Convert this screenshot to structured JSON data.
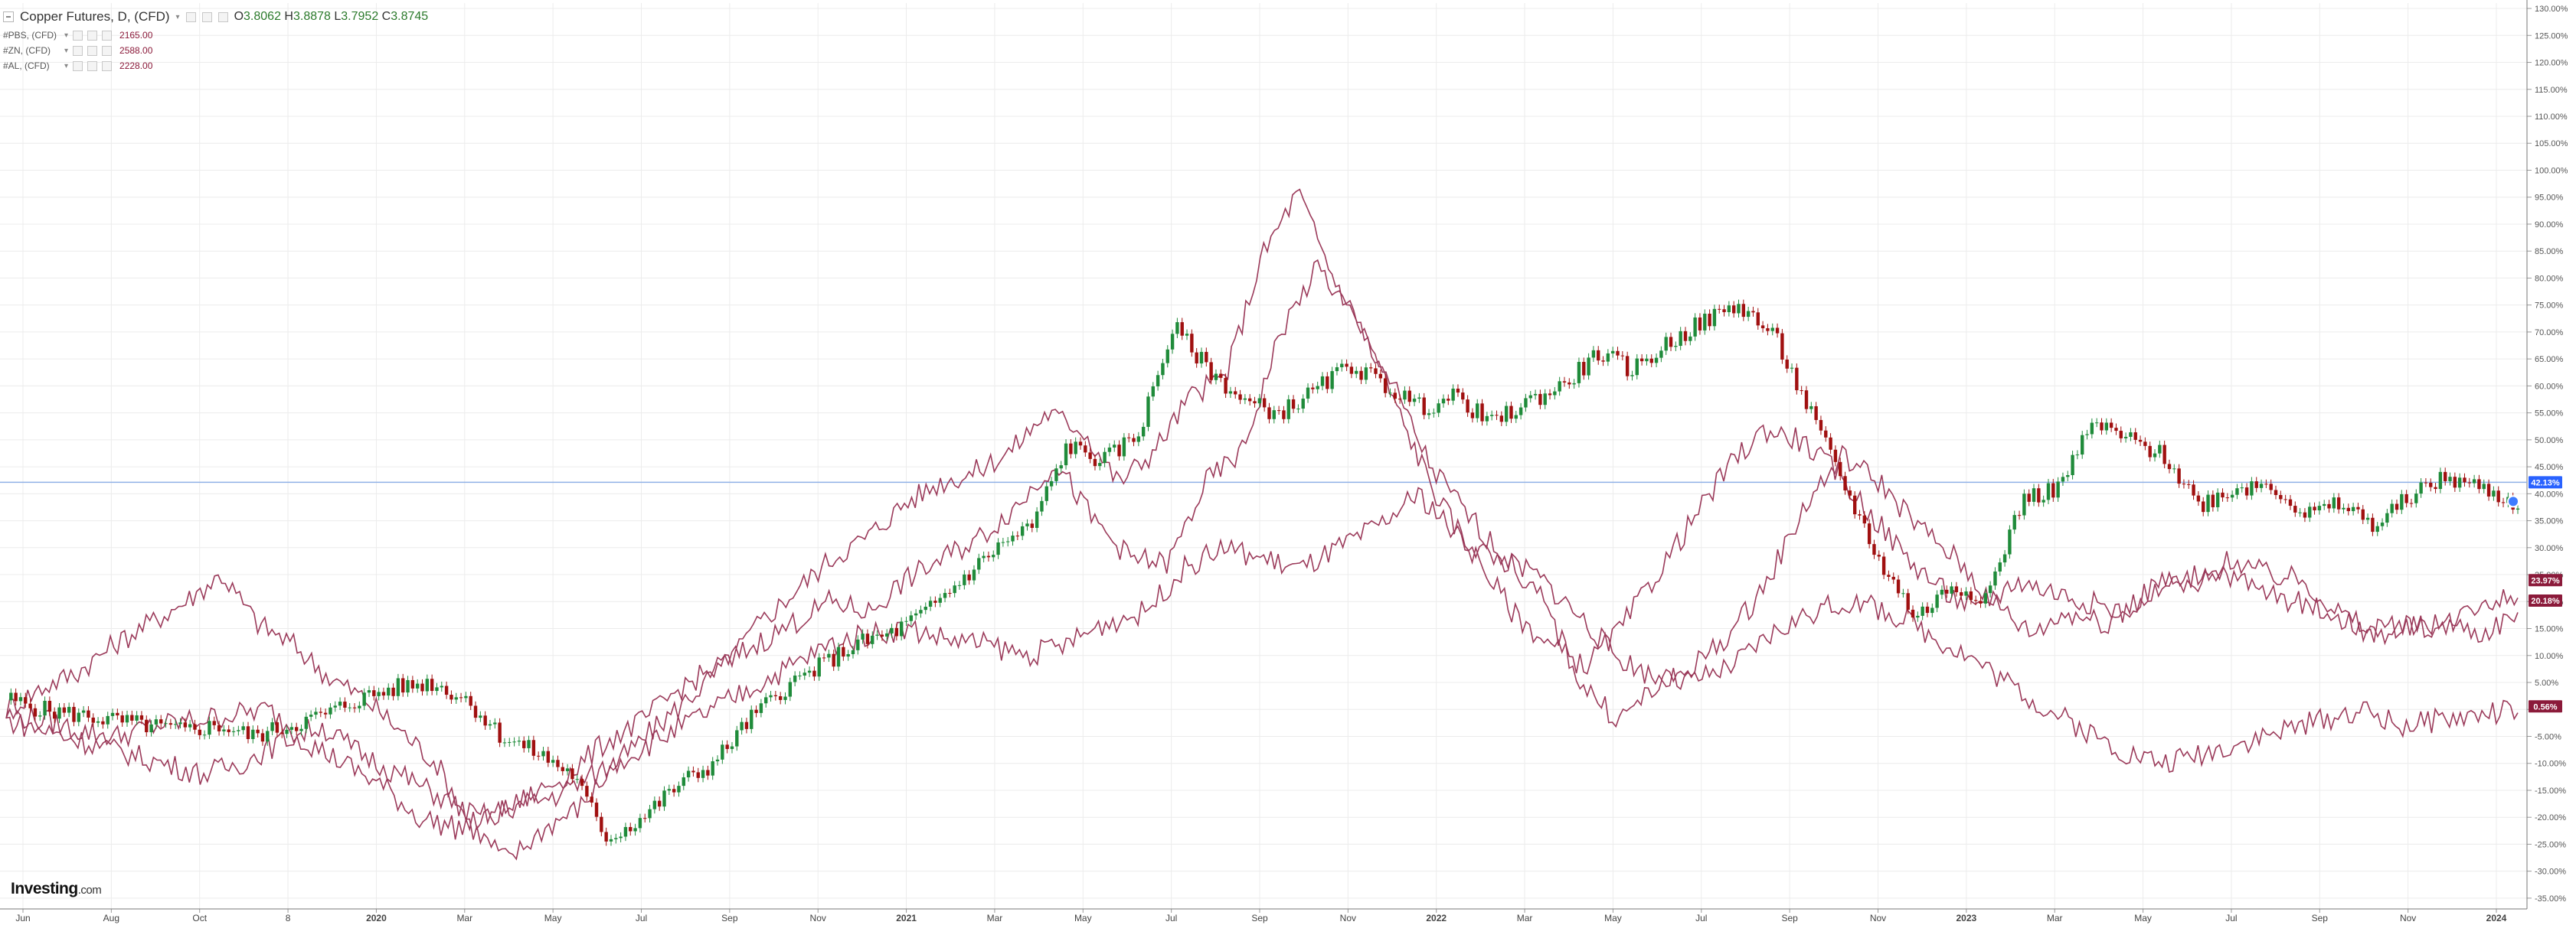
{
  "header": {
    "title": "Copper Futures, D, (CFD)",
    "ohlc": [
      {
        "label": "O",
        "value": "3.8062"
      },
      {
        "label": "H",
        "value": "3.8878"
      },
      {
        "label": "L",
        "value": "3.7952"
      },
      {
        "label": "C",
        "value": "3.8745"
      }
    ]
  },
  "comparisons": [
    {
      "symbol": "#PBS, (CFD)",
      "value": "2165.00"
    },
    {
      "symbol": "#ZN, (CFD)",
      "value": "2588.00"
    },
    {
      "symbol": "#AL, (CFD)",
      "value": "2228.00"
    }
  ],
  "logo": {
    "brand": "Investing",
    "suffix": ".com"
  },
  "colors": {
    "up": "#1f8b3a",
    "down": "#a01010",
    "compare": "#9b3a5a",
    "grid": "#ececec",
    "crosshair": "#8fb0e6",
    "current_label_bg": "#2962ff",
    "compare_label_bg": "#8b1a3a"
  },
  "chart_data": {
    "type": "line",
    "x_ticks": [
      "Jun",
      "Aug",
      "Oct",
      "8",
      "2020",
      "Mar",
      "May",
      "Jul",
      "Sep",
      "Nov",
      "2021",
      "Mar",
      "May",
      "Jul",
      "Sep",
      "Nov",
      "2022",
      "Mar",
      "May",
      "Jul",
      "Sep",
      "Nov",
      "2023",
      "Mar",
      "May",
      "Jul",
      "Sep",
      "Nov",
      "2024"
    ],
    "y_ticks": [
      "130.00%",
      "125.00%",
      "120.00%",
      "115.00%",
      "110.00%",
      "105.00%",
      "100.00%",
      "95.00%",
      "90.00%",
      "85.00%",
      "80.00%",
      "75.00%",
      "70.00%",
      "65.00%",
      "60.00%",
      "55.00%",
      "50.00%",
      "45.00%",
      "40.00%",
      "35.00%",
      "30.00%",
      "25.00%",
      "20.00%",
      "15.00%",
      "10.00%",
      "5.00%",
      "0.00%",
      "-5.00%",
      "-10.00%",
      "-15.00%",
      "-20.00%",
      "-25.00%",
      "-30.00%",
      "-35.00%"
    ],
    "ylim": [
      -37,
      131
    ],
    "y_unit": "%",
    "x_count": 59,
    "series": [
      {
        "role": "candles",
        "values": [
          2,
          0,
          -1,
          -2,
          -3,
          -4,
          -3,
          -5,
          -3,
          -1,
          2,
          4,
          5,
          2,
          -5,
          -8,
          -12,
          -24,
          -20,
          -14,
          -10,
          -2,
          4,
          8,
          12,
          14,
          18,
          24,
          30,
          34,
          49,
          46,
          51,
          71,
          63,
          57,
          55,
          59,
          64,
          60,
          56,
          58,
          53,
          57,
          60,
          66,
          63,
          68,
          72,
          75,
          69,
          55,
          41,
          27,
          17,
          23,
          21,
          39,
          41,
          53,
          50,
          47,
          38,
          41,
          42,
          36,
          38,
          34,
          40,
          43,
          41,
          38
        ]
      },
      {
        "role": "compare",
        "values": [
          0,
          4,
          7,
          12,
          16,
          20,
          25,
          16,
          12,
          6,
          2,
          -4,
          -10,
          -22,
          -28,
          -22,
          -18,
          -10,
          -4,
          2,
          8,
          16,
          22,
          28,
          32,
          38,
          42,
          44,
          48,
          55,
          52,
          42,
          48,
          58,
          62,
          84,
          96,
          80,
          68,
          52,
          38,
          28,
          18,
          12,
          8,
          15,
          25,
          35,
          45,
          52,
          50,
          44,
          36,
          28,
          22,
          18,
          24,
          22,
          20,
          18,
          24,
          22,
          28,
          25,
          24,
          18,
          14,
          15,
          16,
          14,
          18
        ]
      },
      {
        "role": "compare",
        "values": [
          -1,
          -2,
          -4,
          -5,
          -3,
          -2,
          -1,
          0,
          -6,
          -10,
          -14,
          -20,
          -22,
          -20,
          -16,
          -12,
          -6,
          -2,
          4,
          8,
          12,
          16,
          20,
          18,
          24,
          28,
          32,
          38,
          46,
          35,
          28,
          27,
          42,
          48,
          70,
          82,
          72,
          60,
          45,
          36,
          28,
          20,
          5,
          -2,
          4,
          8,
          14,
          24,
          38,
          47,
          42,
          34,
          28,
          20,
          14,
          18,
          16,
          20,
          24,
          26,
          22,
          20,
          18,
          14,
          16,
          15,
          20,
          21
        ]
      },
      {
        "role": "compare",
        "values": [
          -2,
          -4,
          -6,
          -8,
          -10,
          -12,
          -10,
          -6,
          -3,
          -8,
          -12,
          -16,
          -20,
          -18,
          -16,
          -12,
          -8,
          -4,
          0,
          4,
          8,
          12,
          14,
          15,
          13,
          12,
          10,
          12,
          16,
          18,
          26,
          30,
          28,
          26,
          30,
          34,
          40,
          32,
          28,
          25,
          18,
          10,
          6,
          5,
          8,
          14,
          18,
          20,
          18,
          14,
          10,
          5,
          0,
          -4,
          -8,
          -10,
          -8,
          -6,
          -4,
          -2,
          0,
          -3,
          -2,
          -1,
          0
        ]
      }
    ],
    "current_labels": [
      {
        "text": "42.13%",
        "value": 42.13,
        "kind": "current"
      },
      {
        "text": "23.97%",
        "value": 23.97,
        "kind": "compare"
      },
      {
        "text": "20.18%",
        "value": 20.18,
        "kind": "compare"
      },
      {
        "text": "0.56%",
        "value": 0.56,
        "kind": "compare"
      }
    ],
    "crosshair_value": 42.13,
    "grid": true
  }
}
